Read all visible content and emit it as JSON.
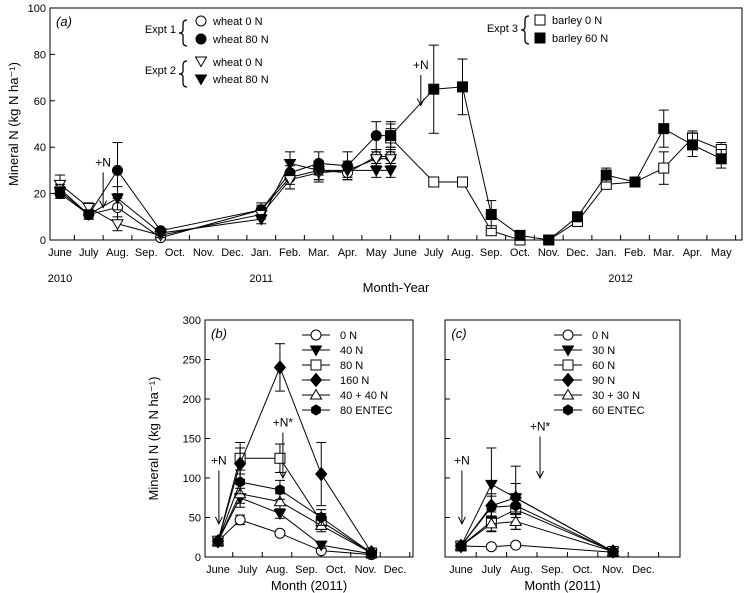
{
  "chart_data": [
    {
      "type": "line",
      "panel_label": "(a)",
      "xlabel": "Month-Year",
      "ylabel": "Mineral N (kg N ha⁻¹)",
      "ylim": [
        0,
        100
      ],
      "yticks": [
        0,
        20,
        40,
        60,
        80,
        100
      ],
      "month_ticks": [
        "June",
        "July",
        "Aug.",
        "Sep.",
        "Oct.",
        "Nov.",
        "Dec.",
        "Jan.",
        "Feb.",
        "Mar.",
        "Apr.",
        "May",
        "June",
        "July",
        "Aug.",
        "Sep.",
        "Oct.",
        "Nov.",
        "Dec.",
        "Jan.",
        "Feb.",
        "Mar.",
        "Apr.",
        "May"
      ],
      "year_labels": [
        {
          "text": "2010",
          "at": 0
        },
        {
          "text": "2011",
          "at": 7
        },
        {
          "text": "2012",
          "at": 19.5
        }
      ],
      "annotations": [
        {
          "text": "+N",
          "x": 1.5,
          "y": 30,
          "arrow_to": 14
        },
        {
          "text": "+N",
          "x": 12.55,
          "y": 72,
          "arrow_to": 58
        }
      ],
      "legend_groups": [
        {
          "label": "Expt 1",
          "entries": [
            "wheat 0 N",
            "wheat 80 N"
          ]
        },
        {
          "label": "Expt 2",
          "entries": [
            "wheat 0 N",
            "wheat 80 N"
          ]
        },
        {
          "label": "Expt 3",
          "entries": [
            "barley 0 N",
            "barley 60 N"
          ]
        }
      ],
      "series": [
        {
          "name": "wheat 0 N",
          "group": "Expt 1",
          "marker": "circle-open",
          "x": [
            0,
            1,
            2,
            3.5,
            7,
            8,
            9,
            10,
            11,
            11.5
          ],
          "y": [
            22,
            11,
            14,
            1,
            13,
            27,
            30,
            29,
            36,
            36
          ],
          "err": [
            3,
            2,
            6,
            1,
            3,
            5,
            4,
            3,
            3,
            3
          ]
        },
        {
          "name": "wheat 80 N",
          "group": "Expt 1",
          "marker": "circle-filled",
          "x": [
            0,
            1,
            2,
            3.5,
            7,
            8,
            9,
            10,
            11,
            11.5
          ],
          "y": [
            20,
            11,
            30,
            4,
            13,
            29,
            33,
            32,
            45,
            45
          ],
          "err": [
            2,
            2,
            12,
            1,
            2,
            5,
            5,
            6,
            6,
            6
          ]
        },
        {
          "name": "wheat 0 N",
          "group": "Expt 2",
          "marker": "tri-down-open",
          "x": [
            0,
            1,
            2,
            3.5,
            7,
            8,
            9,
            10,
            11,
            11.5
          ],
          "y": [
            24,
            14,
            7,
            2,
            11,
            26,
            29,
            30,
            35,
            35
          ],
          "err": [
            4,
            2,
            3,
            1,
            2,
            4,
            4,
            3,
            3,
            3
          ]
        },
        {
          "name": "wheat 80 N",
          "group": "Expt 2",
          "marker": "tri-down-filled",
          "x": [
            0,
            1,
            2,
            3.5,
            7,
            8,
            9,
            10,
            11,
            11.5
          ],
          "y": [
            21,
            11,
            18,
            3,
            9,
            33,
            30,
            30,
            30,
            30
          ],
          "err": [
            3,
            2,
            5,
            1,
            2,
            5,
            4,
            4,
            3,
            3
          ]
        },
        {
          "name": "barley 0 N",
          "group": "Expt 3",
          "marker": "square-open",
          "x": [
            11.5,
            13,
            14,
            15,
            16,
            17,
            18,
            19,
            20,
            21,
            22,
            23
          ],
          "y": [
            44,
            25,
            25,
            4,
            0,
            0,
            8,
            24,
            25,
            31,
            44,
            39
          ],
          "err": [
            4,
            2,
            2,
            2,
            1,
            1,
            2,
            2,
            2,
            7,
            3,
            3
          ]
        },
        {
          "name": "barley 60 N",
          "group": "Expt 3",
          "marker": "square-filled",
          "x": [
            11.5,
            13,
            14,
            15,
            16,
            17,
            18,
            19,
            20,
            21,
            22,
            23
          ],
          "y": [
            45,
            65,
            66,
            11,
            2,
            0,
            10,
            28,
            25,
            48,
            41,
            35
          ],
          "err": [
            5,
            19,
            12,
            6,
            1,
            1,
            2,
            3,
            2,
            8,
            5,
            4
          ]
        }
      ]
    },
    {
      "type": "line",
      "panel_label": "(b)",
      "xlabel": "Month (2011)",
      "ylabel": "Mineral N (kg N ha⁻¹)",
      "ylim": [
        0,
        300
      ],
      "yticks": [
        0,
        50,
        100,
        150,
        200,
        250,
        300
      ],
      "month_ticks": [
        "June",
        "July",
        "Aug.",
        "Sep.",
        "Oct.",
        "Nov.",
        "Dec."
      ],
      "annotations": [
        {
          "text": "+N",
          "x": 0.03,
          "y": 112,
          "arrow_to": 42
        },
        {
          "text": "+N*",
          "x": 2.2,
          "y": 160,
          "arrow_to": 100
        }
      ],
      "series": [
        {
          "name": "0 N",
          "marker": "circle-open",
          "x": [
            0,
            0.75,
            2.1,
            3.5,
            5.2
          ],
          "y": [
            20,
            47,
            30,
            8,
            3
          ],
          "err": [
            3,
            6,
            3,
            2,
            1
          ]
        },
        {
          "name": "40 N",
          "marker": "tri-down-filled",
          "x": [
            0,
            0.75,
            2.1,
            3.5,
            5.2
          ],
          "y": [
            20,
            75,
            55,
            15,
            4
          ],
          "err": [
            3,
            12,
            6,
            4,
            1
          ]
        },
        {
          "name": "80 N",
          "marker": "square-open",
          "x": [
            0,
            0.75,
            2.1,
            3.5,
            5.2
          ],
          "y": [
            20,
            125,
            125,
            45,
            5
          ],
          "err": [
            3,
            20,
            18,
            10,
            1
          ]
        },
        {
          "name": "160 N",
          "marker": "diamond-filled",
          "x": [
            0,
            0.75,
            2.1,
            3.5,
            5.2
          ],
          "y": [
            20,
            118,
            240,
            105,
            6
          ],
          "err": [
            3,
            20,
            30,
            40,
            1
          ]
        },
        {
          "name": "40 + 40 N",
          "marker": "tri-up-open",
          "x": [
            0,
            0.75,
            2.1,
            3.5,
            5.2
          ],
          "y": [
            20,
            80,
            70,
            40,
            5
          ],
          "err": [
            3,
            12,
            10,
            8,
            1
          ]
        },
        {
          "name": "80 ENTEC",
          "marker": "hex-filled",
          "x": [
            0,
            0.75,
            2.1,
            3.5,
            5.2
          ],
          "y": [
            20,
            95,
            85,
            50,
            5
          ],
          "err": [
            3,
            15,
            12,
            10,
            1
          ]
        }
      ]
    },
    {
      "type": "line",
      "panel_label": "(c)",
      "xlabel": "Month (2011)",
      "ylim": [
        0,
        300
      ],
      "month_ticks": [
        "June",
        "July",
        "Aug.",
        "Sep.",
        "Oct.",
        "Nov.",
        "Dec."
      ],
      "annotations": [
        {
          "text": "+N",
          "x": 0.03,
          "y": 112,
          "arrow_to": 42
        },
        {
          "text": "+N*",
          "x": 2.6,
          "y": 155,
          "arrow_to": 100
        }
      ],
      "series": [
        {
          "name": "0 N",
          "marker": "circle-open",
          "x": [
            0,
            1.0,
            1.8,
            5.0
          ],
          "y": [
            14,
            13,
            15,
            6
          ],
          "err": [
            2,
            3,
            3,
            1
          ]
        },
        {
          "name": "30 N",
          "marker": "tri-down-filled",
          "x": [
            0,
            1.0,
            1.8,
            5.0
          ],
          "y": [
            14,
            92,
            75,
            7
          ],
          "err": [
            2,
            46,
            40,
            1
          ]
        },
        {
          "name": "60 N",
          "marker": "square-open",
          "x": [
            0,
            1.0,
            1.8,
            5.0
          ],
          "y": [
            14,
            45,
            60,
            7
          ],
          "err": [
            2,
            12,
            18,
            1
          ]
        },
        {
          "name": "90 N",
          "marker": "diamond-filled",
          "x": [
            0,
            1.0,
            1.8,
            5.0
          ],
          "y": [
            14,
            65,
            75,
            7
          ],
          "err": [
            2,
            15,
            18,
            1
          ]
        },
        {
          "name": "30 + 30 N",
          "marker": "tri-up-open",
          "x": [
            0,
            1.0,
            1.8,
            5.0
          ],
          "y": [
            14,
            42,
            45,
            7
          ],
          "err": [
            2,
            10,
            10,
            1
          ]
        },
        {
          "name": "60 ENTEC",
          "marker": "hex-filled",
          "x": [
            0,
            1.0,
            1.8,
            5.0
          ],
          "y": [
            14,
            63,
            65,
            7
          ],
          "err": [
            2,
            14,
            15,
            1
          ]
        }
      ]
    }
  ]
}
